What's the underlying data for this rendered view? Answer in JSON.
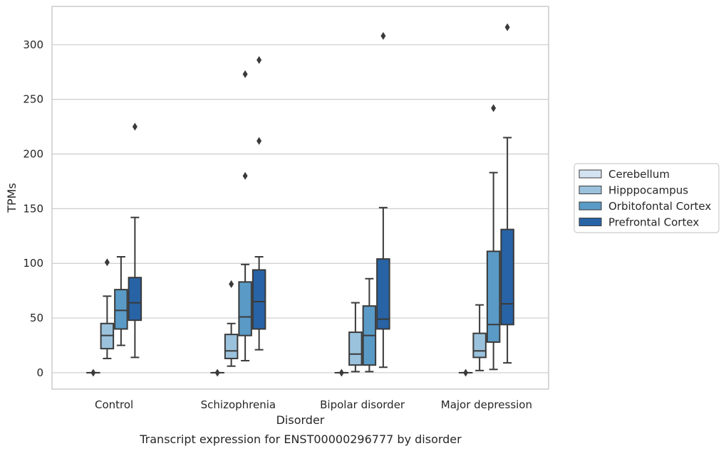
{
  "chart_data": {
    "type": "boxplot",
    "title": "",
    "caption": "Transcript expression for ENST00000296777 by disorder",
    "xlabel": "Disorder",
    "ylabel": "TPMs",
    "ylim": [
      -15,
      335
    ],
    "yticks": [
      0,
      50,
      100,
      150,
      200,
      250,
      300
    ],
    "grid": "horizontal",
    "legend_position": "right",
    "categories": [
      "Control",
      "Schizophrenia",
      "Bipolar disorder",
      "Major depression"
    ],
    "series": [
      {
        "name": "Cerebellum",
        "color": "#d4e3f1",
        "boxes": [
          {
            "whislo": 0,
            "q1": 0,
            "med": 0,
            "q3": 0,
            "whishi": 0,
            "fliers": [
              0
            ]
          },
          {
            "whislo": 0,
            "q1": 0,
            "med": 0,
            "q3": 0,
            "whishi": 0,
            "fliers": [
              0
            ]
          },
          {
            "whislo": 0,
            "q1": 0,
            "med": 0,
            "q3": 0,
            "whishi": 0,
            "fliers": [
              0
            ]
          },
          {
            "whislo": 0,
            "q1": 0,
            "med": 0,
            "q3": 0,
            "whishi": 0,
            "fliers": [
              0
            ]
          }
        ]
      },
      {
        "name": "Hipppocampus",
        "color": "#9bc2dd",
        "boxes": [
          {
            "whislo": 13,
            "q1": 22,
            "med": 34,
            "q3": 45,
            "whishi": 70,
            "fliers": [
              101
            ]
          },
          {
            "whislo": 6,
            "q1": 13,
            "med": 20,
            "q3": 35,
            "whishi": 45,
            "fliers": [
              81
            ]
          },
          {
            "whislo": 1,
            "q1": 7,
            "med": 17,
            "q3": 37,
            "whishi": 64,
            "fliers": []
          },
          {
            "whislo": 2,
            "q1": 14,
            "med": 20,
            "q3": 36,
            "whishi": 62,
            "fliers": []
          }
        ]
      },
      {
        "name": "Orbitofontal Cortex",
        "color": "#5a9ac6",
        "boxes": [
          {
            "whislo": 25,
            "q1": 40,
            "med": 57,
            "q3": 76,
            "whishi": 106,
            "fliers": []
          },
          {
            "whislo": 11,
            "q1": 34,
            "med": 51,
            "q3": 83,
            "whishi": 99,
            "fliers": [
              180,
              273
            ]
          },
          {
            "whislo": 1,
            "q1": 7,
            "med": 34,
            "q3": 61,
            "whishi": 86,
            "fliers": []
          },
          {
            "whislo": 3,
            "q1": 28,
            "med": 44,
            "q3": 111,
            "whishi": 183,
            "fliers": [
              242
            ]
          }
        ]
      },
      {
        "name": "Prefrontal Cortex",
        "color": "#2863a6",
        "boxes": [
          {
            "whislo": 14,
            "q1": 48,
            "med": 64,
            "q3": 87,
            "whishi": 142,
            "fliers": [
              225
            ]
          },
          {
            "whislo": 21,
            "q1": 40,
            "med": 65,
            "q3": 94,
            "whishi": 106,
            "fliers": [
              212,
              286
            ]
          },
          {
            "whislo": 5,
            "q1": 40,
            "med": 49,
            "q3": 104,
            "whishi": 151,
            "fliers": [
              308
            ]
          },
          {
            "whislo": 9,
            "q1": 44,
            "med": 63,
            "q3": 131,
            "whishi": 215,
            "fliers": [
              316
            ]
          }
        ]
      }
    ]
  }
}
